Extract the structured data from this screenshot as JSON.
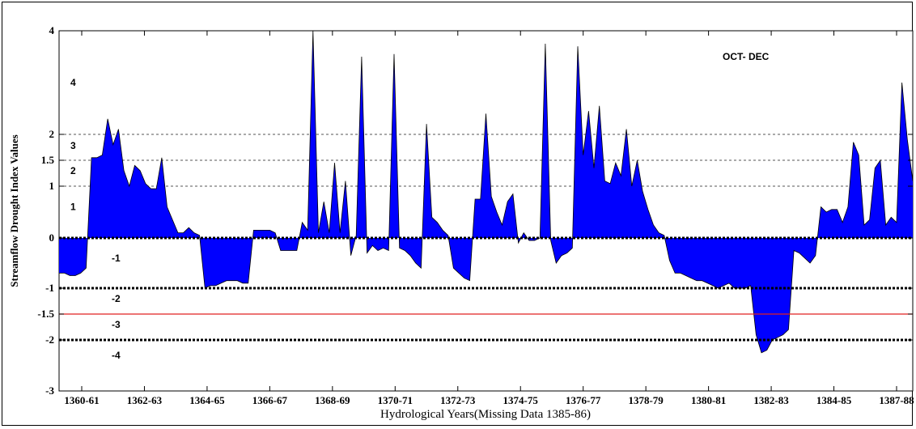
{
  "chart_data": {
    "type": "area",
    "xlabel": "Hydrological Years(Missing Data 1385-86)",
    "ylabel": "Streamflow Drought Index Values",
    "annotation": "OCT- DEC",
    "ylim": [
      -3,
      4
    ],
    "y_scale": "nonlinear (axis ticks as printed)",
    "grid": "horizontal dashed at y = -2, -1, 0, 1, 1.5, 2",
    "y_ticks": [
      {
        "value": 4,
        "label": "4"
      },
      {
        "value": 2,
        "label": "2"
      },
      {
        "value": 1.5,
        "label": "1.5"
      },
      {
        "value": 1,
        "label": "1"
      },
      {
        "value": 0,
        "label": "0"
      },
      {
        "value": -1,
        "label": "-1"
      },
      {
        "value": -1.5,
        "label": "-1.5"
      },
      {
        "value": -2,
        "label": "-2"
      },
      {
        "value": -3,
        "label": "-3"
      }
    ],
    "x_tick_labels": [
      "1360-61",
      "1362-63",
      "1364-65",
      "1366-67",
      "1368-69",
      "1370-71",
      "1372-73",
      "1374-75",
      "1376-77",
      "1378-79",
      "1380-81",
      "1382-83",
      "1384-85",
      "1387-88"
    ],
    "drought_class_labels": [
      {
        "label": "4",
        "y": 3.0
      },
      {
        "label": "3",
        "y": 1.78
      },
      {
        "label": "2",
        "y": 1.3
      },
      {
        "label": "1",
        "y": 0.6
      },
      {
        "label": "-1",
        "y": -0.4
      },
      {
        "label": "-2",
        "y": -1.2
      },
      {
        "label": "-3",
        "y": -1.7
      },
      {
        "label": "-4",
        "y": -2.3
      }
    ],
    "reference_lines": [
      {
        "y": 0,
        "style": "dotted-heavy",
        "color": "#000000"
      },
      {
        "y": -1,
        "style": "dotted-heavy",
        "color": "#000000"
      },
      {
        "y": -1.5,
        "style": "solid",
        "color": "#e02020"
      },
      {
        "y": -2,
        "style": "dotted-heavy",
        "color": "#000000"
      }
    ],
    "series": [
      {
        "fill": "#0000ff",
        "note": "SDI values in chronological order across 1360-61 to 1387-88 (approximate, read from axis)",
        "values": [
          -0.7,
          -0.7,
          -0.75,
          -0.75,
          -0.7,
          -0.6,
          1.55,
          1.55,
          1.6,
          2.3,
          1.8,
          2.1,
          1.3,
          1.0,
          1.4,
          1.3,
          1.05,
          0.95,
          0.95,
          1.55,
          0.6,
          0.35,
          0.1,
          0.1,
          0.2,
          0.1,
          0.05,
          -1.0,
          -0.95,
          -0.95,
          -0.9,
          -0.85,
          -0.85,
          -0.85,
          -0.9,
          -0.9,
          0.15,
          0.15,
          0.15,
          0.15,
          0.1,
          -0.25,
          -0.25,
          -0.25,
          -0.25,
          0.3,
          0.15,
          4.0,
          0.1,
          0.7,
          0.1,
          1.45,
          0.1,
          1.1,
          -0.35,
          0.05,
          3.5,
          -0.3,
          -0.15,
          -0.25,
          -0.2,
          -0.25,
          3.55,
          -0.2,
          -0.25,
          -0.35,
          -0.5,
          -0.6,
          2.2,
          0.4,
          0.3,
          0.15,
          0.05,
          -0.6,
          -0.7,
          -0.8,
          -0.85,
          0.75,
          0.75,
          2.4,
          0.8,
          0.5,
          0.25,
          0.7,
          0.85,
          -0.1,
          0.1,
          -0.05,
          -0.05,
          0.0,
          3.75,
          -0.05,
          -0.5,
          -0.35,
          -0.3,
          -0.2,
          3.7,
          1.6,
          2.45,
          1.35,
          2.55,
          1.1,
          1.05,
          1.45,
          1.2,
          2.1,
          1.0,
          1.5,
          0.9,
          0.55,
          0.25,
          0.1,
          0.05,
          -0.45,
          -0.7,
          -0.7,
          -0.75,
          -0.8,
          -0.85,
          -0.85,
          -0.9,
          -0.95,
          -1.0,
          -0.95,
          -0.9,
          -1.0,
          -1.0,
          -1.0,
          -0.95,
          -1.9,
          -2.25,
          -2.2,
          -2.0,
          -1.95,
          -1.9,
          -1.8,
          -0.25,
          -0.3,
          -0.4,
          -0.5,
          -0.35,
          0.6,
          0.5,
          0.55,
          0.55,
          0.3,
          0.6,
          1.85,
          1.6,
          0.25,
          0.35,
          1.35,
          1.5,
          0.25,
          0.4,
          0.3,
          3.0,
          1.9,
          1.1
        ]
      }
    ]
  }
}
